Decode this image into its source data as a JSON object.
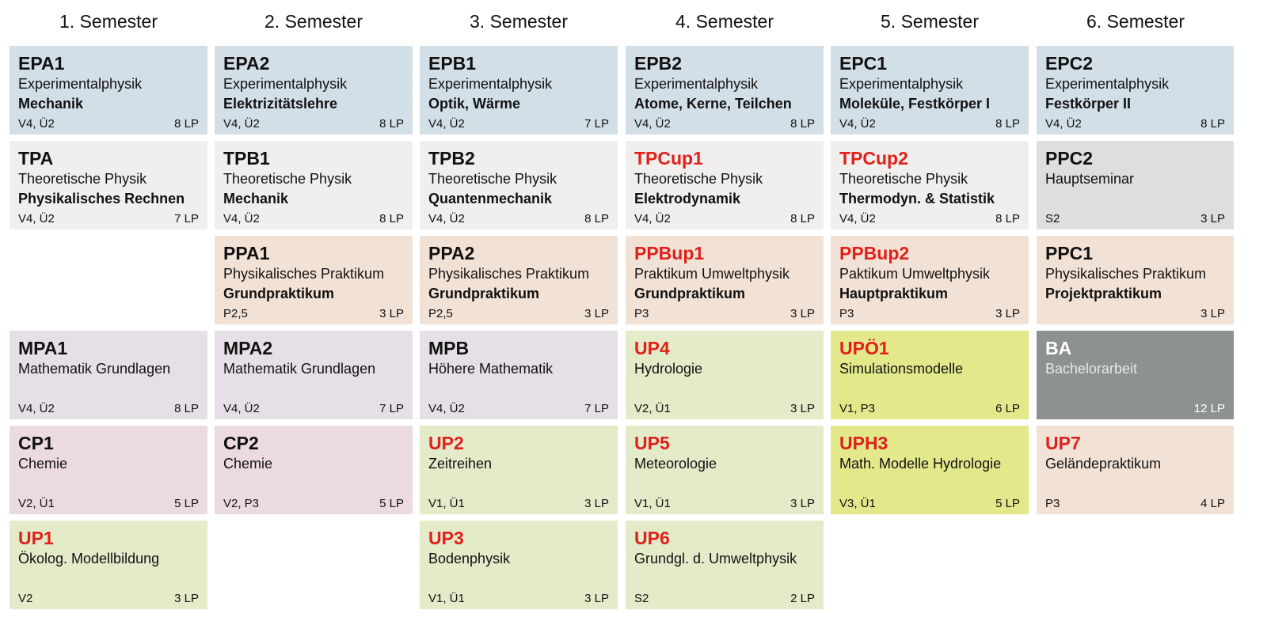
{
  "colors": {
    "experimental": "#d3dfe7",
    "theory": "#f0efed",
    "lab": "#f2e2d6",
    "math": "#e7dfe7",
    "chemistry": "#ecdae3",
    "environment": "#e3ebc9",
    "simulation": "#e3e88b",
    "seminar": "#dedede",
    "thesis": "#8d9192",
    "code_red": "#e0201b"
  },
  "semesters": [
    "1. Semester",
    "2. Semester",
    "3. Semester",
    "4. Semester",
    "5. Semester",
    "6. Semester"
  ],
  "modules": [
    {
      "col": 0,
      "row": 0,
      "code": "EPA1",
      "red": false,
      "line1": "Experimentalphysik",
      "line2": "Mechanik",
      "meta": "V4, Ü2",
      "lp": "8 LP",
      "cat": "experimental"
    },
    {
      "col": 1,
      "row": 0,
      "code": "EPA2",
      "red": false,
      "line1": "Experimentalphysik",
      "line2": "Elektrizitätslehre",
      "meta": "V4, Ü2",
      "lp": "8 LP",
      "cat": "experimental"
    },
    {
      "col": 2,
      "row": 0,
      "code": "EPB1",
      "red": false,
      "line1": "Experimentalphysik",
      "line2": "Optik, Wärme",
      "meta": "V4, Ü2",
      "lp": "7 LP",
      "cat": "experimental"
    },
    {
      "col": 3,
      "row": 0,
      "code": "EPB2",
      "red": false,
      "line1": "Experimentalphysik",
      "line2": "Atome, Kerne, Teilchen",
      "meta": "V4, Ü2",
      "lp": "8 LP",
      "cat": "experimental"
    },
    {
      "col": 4,
      "row": 0,
      "code": "EPC1",
      "red": false,
      "line1": "Experimentalphysik",
      "line2": "Moleküle, Festkörper I",
      "meta": "V4, Ü2",
      "lp": "8 LP",
      "cat": "experimental"
    },
    {
      "col": 5,
      "row": 0,
      "code": "EPC2",
      "red": false,
      "line1": "Experimentalphysik",
      "line2": "Festkörper II",
      "meta": "V4, Ü2",
      "lp": "8 LP",
      "cat": "experimental"
    },
    {
      "col": 0,
      "row": 1,
      "code": "TPA",
      "red": false,
      "line1": "Theoretische Physik",
      "line2": "Physikalisches Rechnen",
      "meta": "V4, Ü2",
      "lp": "7 LP",
      "cat": "theory"
    },
    {
      "col": 1,
      "row": 1,
      "code": "TPB1",
      "red": false,
      "line1": "Theoretische Physik",
      "line2": "Mechanik",
      "meta": "V4, Ü2",
      "lp": "8 LP",
      "cat": "theory"
    },
    {
      "col": 2,
      "row": 1,
      "code": "TPB2",
      "red": false,
      "line1": "Theoretische Physik",
      "line2": "Quantenmechanik",
      "meta": "V4, Ü2",
      "lp": "8 LP",
      "cat": "theory"
    },
    {
      "col": 3,
      "row": 1,
      "code": "TPCup1",
      "red": true,
      "line1": "Theoretische Physik",
      "line2": "Elektrodynamik",
      "meta": "V4, Ü2",
      "lp": "8 LP",
      "cat": "theory"
    },
    {
      "col": 4,
      "row": 1,
      "code": "TPCup2",
      "red": true,
      "line1": "Theoretische Physik",
      "line2": "Thermodyn. & Statistik",
      "meta": "V4, Ü2",
      "lp": "8 LP",
      "cat": "theory"
    },
    {
      "col": 5,
      "row": 1,
      "code": "PPC2",
      "red": false,
      "line1": "Hauptseminar",
      "line2": "",
      "meta": "S2",
      "lp": "3 LP",
      "cat": "seminar"
    },
    {
      "col": 1,
      "row": 2,
      "code": "PPA1",
      "red": false,
      "line1": "Physikalisches Praktikum",
      "line2": "Grundpraktikum",
      "meta": "P2,5",
      "lp": "3 LP",
      "cat": "lab"
    },
    {
      "col": 2,
      "row": 2,
      "code": "PPA2",
      "red": false,
      "line1": "Physikalisches Praktikum",
      "line2": "Grundpraktikum",
      "meta": "P2,5",
      "lp": "3 LP",
      "cat": "lab"
    },
    {
      "col": 3,
      "row": 2,
      "code": "PPBup1",
      "red": true,
      "line1": "Praktikum Umweltphysik",
      "line2": "Grundpraktikum",
      "meta": "P3",
      "lp": "3 LP",
      "cat": "lab"
    },
    {
      "col": 4,
      "row": 2,
      "code": "PPBup2",
      "red": true,
      "line1": "Paktikum Umweltphysik",
      "line2": "Hauptpraktikum",
      "meta": "P3",
      "lp": "3 LP",
      "cat": "lab"
    },
    {
      "col": 5,
      "row": 2,
      "code": "PPC1",
      "red": false,
      "line1": "Physikalisches Praktikum",
      "line2": "Projektpraktikum",
      "meta": "",
      "lp": "3 LP",
      "cat": "lab"
    },
    {
      "col": 0,
      "row": 3,
      "code": "MPA1",
      "red": false,
      "line1": "Mathematik Grundlagen",
      "line2": "",
      "meta": "V4, Ü2",
      "lp": "8 LP",
      "cat": "math"
    },
    {
      "col": 1,
      "row": 3,
      "code": "MPA2",
      "red": false,
      "line1": "Mathematik Grundlagen",
      "line2": "",
      "meta": "V4, Ü2",
      "lp": "7 LP",
      "cat": "math"
    },
    {
      "col": 2,
      "row": 3,
      "code": "MPB",
      "red": false,
      "line1": "Höhere Mathematik",
      "line2": "",
      "meta": "V4, Ü2",
      "lp": "7 LP",
      "cat": "math"
    },
    {
      "col": 3,
      "row": 3,
      "code": "UP4",
      "red": true,
      "line1": "Hydrologie",
      "line2": "",
      "meta": "V2, Ü1",
      "lp": "3 LP",
      "cat": "environment"
    },
    {
      "col": 4,
      "row": 3,
      "code": "UPÖ1",
      "red": true,
      "line1": "Simulationsmodelle",
      "line2": "",
      "meta": "V1, P3",
      "lp": "6 LP",
      "cat": "simulation"
    },
    {
      "col": 5,
      "row": 3,
      "code": "BA",
      "red": false,
      "line1": "Bachelorarbeit",
      "line2": "",
      "meta": "",
      "lp": "12 LP",
      "cat": "thesis",
      "dark": true
    },
    {
      "col": 0,
      "row": 4,
      "code": "CP1",
      "red": false,
      "line1": "Chemie",
      "line2": "",
      "meta": "V2, Ü1",
      "lp": "5 LP",
      "cat": "chemistry"
    },
    {
      "col": 1,
      "row": 4,
      "code": "CP2",
      "red": false,
      "line1": "Chemie",
      "line2": "",
      "meta": "V2, P3",
      "lp": "5 LP",
      "cat": "chemistry"
    },
    {
      "col": 2,
      "row": 4,
      "code": "UP2",
      "red": true,
      "line1": "Zeitreihen",
      "line2": "",
      "meta": "V1, Ü1",
      "lp": "3 LP",
      "cat": "environment"
    },
    {
      "col": 3,
      "row": 4,
      "code": "UP5",
      "red": true,
      "line1": "Meteorologie",
      "line2": "",
      "meta": "V1, Ü1",
      "lp": "3 LP",
      "cat": "environment"
    },
    {
      "col": 4,
      "row": 4,
      "code": "UPH3",
      "red": true,
      "line1": "Math. Modelle Hydrologie",
      "line2": "",
      "meta": "V3, Ü1",
      "lp": "5 LP",
      "cat": "simulation"
    },
    {
      "col": 5,
      "row": 4,
      "code": "UP7",
      "red": true,
      "line1": "Geländepraktikum",
      "line2": "",
      "meta": "P3",
      "lp": "4 LP",
      "cat": "lab"
    },
    {
      "col": 0,
      "row": 5,
      "code": "UP1",
      "red": true,
      "line1": "Ökolog. Modellbildung",
      "line2": "",
      "meta": "V2",
      "lp": "3 LP",
      "cat": "environment"
    },
    {
      "col": 2,
      "row": 5,
      "code": "UP3",
      "red": true,
      "line1": "Bodenphysik",
      "line2": "",
      "meta": "V1, Ü1",
      "lp": "3 LP",
      "cat": "environment"
    },
    {
      "col": 3,
      "row": 5,
      "code": "UP6",
      "red": true,
      "line1": "Grundgl. d. Umweltphysik",
      "line2": "",
      "meta": "S2",
      "lp": "2 LP",
      "cat": "environment"
    }
  ]
}
